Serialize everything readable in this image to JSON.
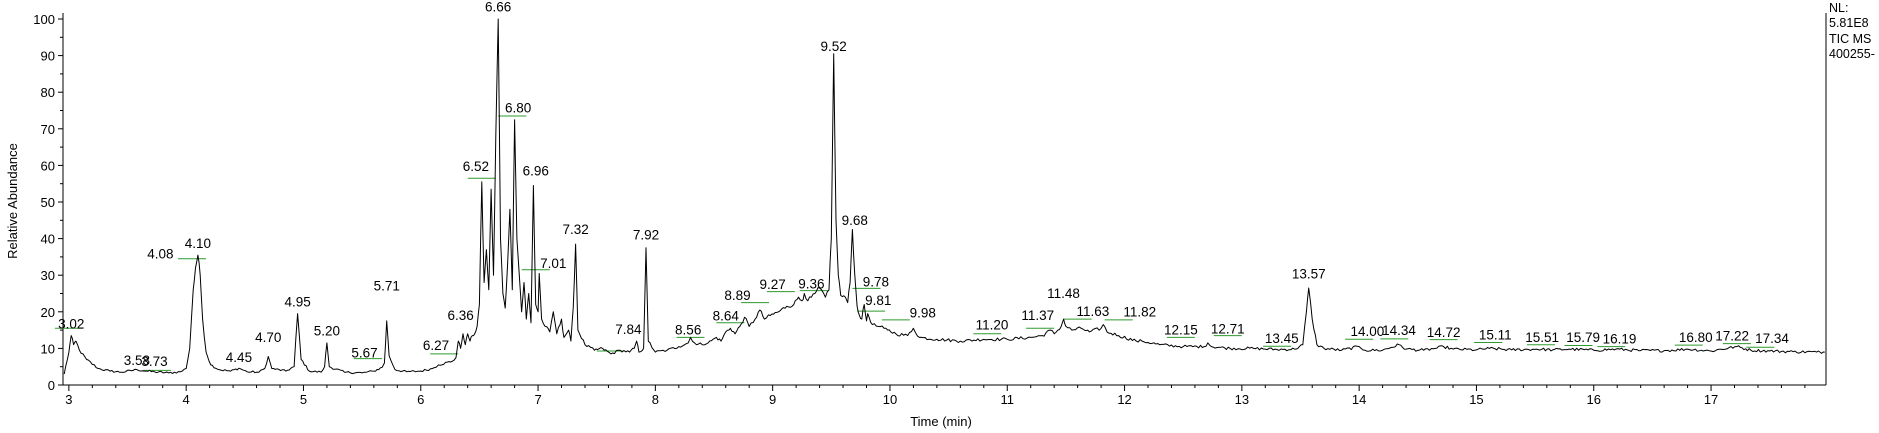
{
  "chart_data": {
    "type": "line",
    "xlabel": "Time (min)",
    "ylabel": "Relative Abundance",
    "xlim": [
      2.95,
      17.98
    ],
    "ylim": [
      0,
      100
    ],
    "x_ticks": [
      "3",
      "4",
      "5",
      "6",
      "7",
      "8",
      "9",
      "10",
      "11",
      "12",
      "13",
      "14",
      "15",
      "16",
      "17"
    ],
    "y_ticks": [
      "0",
      "10",
      "20",
      "30",
      "40",
      "50",
      "60",
      "70",
      "80",
      "90",
      "100"
    ],
    "series_name": "TIC MS",
    "trace": [
      [
        2.96,
        3
      ],
      [
        3.0,
        9
      ],
      [
        3.02,
        13.5
      ],
      [
        3.04,
        11
      ],
      [
        3.06,
        12
      ],
      [
        3.09,
        9.5
      ],
      [
        3.15,
        7
      ],
      [
        3.25,
        4.5
      ],
      [
        3.35,
        3.8
      ],
      [
        3.45,
        3.5
      ],
      [
        3.58,
        4.2
      ],
      [
        3.66,
        3.8
      ],
      [
        3.73,
        3.6
      ],
      [
        3.85,
        3.3
      ],
      [
        3.95,
        3.6
      ],
      [
        4.0,
        4.5
      ],
      [
        4.03,
        10
      ],
      [
        4.06,
        26
      ],
      [
        4.08,
        32
      ],
      [
        4.1,
        35.5
      ],
      [
        4.12,
        30
      ],
      [
        4.14,
        18
      ],
      [
        4.17,
        9
      ],
      [
        4.21,
        5.5
      ],
      [
        4.28,
        4.2
      ],
      [
        4.38,
        3.8
      ],
      [
        4.45,
        4.6
      ],
      [
        4.52,
        3.6
      ],
      [
        4.62,
        3.5
      ],
      [
        4.67,
        4.5
      ],
      [
        4.7,
        7.8
      ],
      [
        4.73,
        4.5
      ],
      [
        4.85,
        3.8
      ],
      [
        4.92,
        5
      ],
      [
        4.95,
        19.5
      ],
      [
        4.98,
        7
      ],
      [
        5.05,
        3.8
      ],
      [
        5.15,
        3.5
      ],
      [
        5.18,
        5
      ],
      [
        5.2,
        11.5
      ],
      [
        5.22,
        5
      ],
      [
        5.35,
        3.5
      ],
      [
        5.5,
        3.3
      ],
      [
        5.6,
        3.8
      ],
      [
        5.67,
        4.8
      ],
      [
        5.69,
        6
      ],
      [
        5.71,
        17.5
      ],
      [
        5.73,
        8
      ],
      [
        5.78,
        4.2
      ],
      [
        5.88,
        3.6
      ],
      [
        6.0,
        3.8
      ],
      [
        6.1,
        4.5
      ],
      [
        6.15,
        5.5
      ],
      [
        6.27,
        6.5
      ],
      [
        6.3,
        7.5
      ],
      [
        6.32,
        12
      ],
      [
        6.34,
        10
      ],
      [
        6.36,
        14
      ],
      [
        6.38,
        11
      ],
      [
        6.4,
        14
      ],
      [
        6.42,
        12
      ],
      [
        6.44,
        13.5
      ],
      [
        6.46,
        14
      ],
      [
        6.48,
        16
      ],
      [
        6.5,
        22
      ],
      [
        6.52,
        55.5
      ],
      [
        6.54,
        28
      ],
      [
        6.56,
        37
      ],
      [
        6.58,
        26
      ],
      [
        6.6,
        53.5
      ],
      [
        6.62,
        30
      ],
      [
        6.64,
        68
      ],
      [
        6.66,
        100
      ],
      [
        6.68,
        40
      ],
      [
        6.7,
        25
      ],
      [
        6.72,
        21
      ],
      [
        6.74,
        33
      ],
      [
        6.76,
        48
      ],
      [
        6.78,
        26
      ],
      [
        6.8,
        72.5
      ],
      [
        6.82,
        40
      ],
      [
        6.84,
        30
      ],
      [
        6.86,
        20
      ],
      [
        6.88,
        28
      ],
      [
        6.9,
        18
      ],
      [
        6.92,
        25
      ],
      [
        6.94,
        17
      ],
      [
        6.96,
        54.5
      ],
      [
        6.98,
        22
      ],
      [
        7.0,
        20
      ],
      [
        7.01,
        30.5
      ],
      [
        7.03,
        18
      ],
      [
        7.06,
        16
      ],
      [
        7.1,
        14.5
      ],
      [
        7.13,
        20
      ],
      [
        7.16,
        14
      ],
      [
        7.2,
        18
      ],
      [
        7.22,
        13
      ],
      [
        7.26,
        15
      ],
      [
        7.28,
        12
      ],
      [
        7.3,
        21
      ],
      [
        7.32,
        38.5
      ],
      [
        7.34,
        15
      ],
      [
        7.4,
        11
      ],
      [
        7.48,
        9.5
      ],
      [
        7.55,
        10
      ],
      [
        7.62,
        8.5
      ],
      [
        7.7,
        9.5
      ],
      [
        7.78,
        9
      ],
      [
        7.82,
        10
      ],
      [
        7.84,
        12
      ],
      [
        7.86,
        9
      ],
      [
        7.9,
        10
      ],
      [
        7.92,
        37.5
      ],
      [
        7.94,
        12
      ],
      [
        8.0,
        9
      ],
      [
        8.1,
        9.5
      ],
      [
        8.2,
        10.5
      ],
      [
        8.28,
        11.5
      ],
      [
        8.3,
        13
      ],
      [
        8.35,
        11
      ],
      [
        8.45,
        11.5
      ],
      [
        8.52,
        13
      ],
      [
        8.56,
        12
      ],
      [
        8.6,
        14.5
      ],
      [
        8.64,
        15.5
      ],
      [
        8.68,
        14
      ],
      [
        8.72,
        16
      ],
      [
        8.76,
        18.5
      ],
      [
        8.8,
        16
      ],
      [
        8.85,
        18
      ],
      [
        8.89,
        20.5
      ],
      [
        8.93,
        18
      ],
      [
        8.98,
        19
      ],
      [
        9.05,
        20
      ],
      [
        9.12,
        21.5
      ],
      [
        9.18,
        22
      ],
      [
        9.22,
        24
      ],
      [
        9.25,
        23
      ],
      [
        9.27,
        25
      ],
      [
        9.3,
        23
      ],
      [
        9.33,
        24
      ],
      [
        9.36,
        25
      ],
      [
        9.4,
        26.5
      ],
      [
        9.45,
        24
      ],
      [
        9.48,
        26
      ],
      [
        9.5,
        40
      ],
      [
        9.52,
        90.5
      ],
      [
        9.54,
        45
      ],
      [
        9.56,
        30
      ],
      [
        9.58,
        24.5
      ],
      [
        9.62,
        24
      ],
      [
        9.64,
        22.5
      ],
      [
        9.66,
        28
      ],
      [
        9.68,
        42.5
      ],
      [
        9.7,
        30
      ],
      [
        9.72,
        21.5
      ],
      [
        9.74,
        19
      ],
      [
        9.76,
        18
      ],
      [
        9.78,
        22
      ],
      [
        9.8,
        17.5
      ],
      [
        9.81,
        19.5
      ],
      [
        9.85,
        16.5
      ],
      [
        9.9,
        16
      ],
      [
        9.95,
        15.5
      ],
      [
        9.98,
        15
      ],
      [
        10.05,
        14
      ],
      [
        10.15,
        13.5
      ],
      [
        10.2,
        15.5
      ],
      [
        10.25,
        13
      ],
      [
        10.4,
        12.5
      ],
      [
        10.6,
        12
      ],
      [
        10.8,
        12.5
      ],
      [
        11.0,
        12.5
      ],
      [
        11.2,
        13
      ],
      [
        11.3,
        13.5
      ],
      [
        11.37,
        15
      ],
      [
        11.4,
        14
      ],
      [
        11.46,
        16
      ],
      [
        11.48,
        18
      ],
      [
        11.5,
        16
      ],
      [
        11.55,
        15
      ],
      [
        11.63,
        15.5
      ],
      [
        11.7,
        14.5
      ],
      [
        11.8,
        15.5
      ],
      [
        11.82,
        16.5
      ],
      [
        11.85,
        14.5
      ],
      [
        11.95,
        13.5
      ],
      [
        12.1,
        12
      ],
      [
        12.15,
        12
      ],
      [
        12.3,
        11
      ],
      [
        12.5,
        10.5
      ],
      [
        12.68,
        10.5
      ],
      [
        12.71,
        11.5
      ],
      [
        12.74,
        10.5
      ],
      [
        12.9,
        10
      ],
      [
        13.1,
        10
      ],
      [
        13.3,
        9.7
      ],
      [
        13.45,
        9.8
      ],
      [
        13.52,
        11
      ],
      [
        13.55,
        20
      ],
      [
        13.57,
        26.5
      ],
      [
        13.6,
        18
      ],
      [
        13.64,
        11
      ],
      [
        13.7,
        10
      ],
      [
        13.85,
        9.5
      ],
      [
        14.0,
        10.5
      ],
      [
        14.05,
        9.5
      ],
      [
        14.2,
        9.5
      ],
      [
        14.34,
        11
      ],
      [
        14.4,
        9.8
      ],
      [
        14.55,
        9.5
      ],
      [
        14.65,
        10
      ],
      [
        14.72,
        10.5
      ],
      [
        14.8,
        9.8
      ],
      [
        15.0,
        9.6
      ],
      [
        15.11,
        10
      ],
      [
        15.3,
        9.6
      ],
      [
        15.51,
        9.8
      ],
      [
        15.65,
        9.6
      ],
      [
        15.79,
        9.8
      ],
      [
        16.0,
        9.5
      ],
      [
        16.19,
        9.8
      ],
      [
        16.4,
        9.4
      ],
      [
        16.6,
        9.4
      ],
      [
        16.8,
        9.8
      ],
      [
        17.0,
        9.3
      ],
      [
        17.22,
        10.5
      ],
      [
        17.34,
        9.5
      ],
      [
        17.5,
        9.3
      ],
      [
        17.7,
        9.1
      ],
      [
        17.9,
        9.0
      ],
      [
        17.97,
        9.0
      ]
    ],
    "peaks": [
      {
        "label": "3.02",
        "x": 3.02,
        "y": 15.5
      },
      {
        "label": "3.58",
        "x": 3.58,
        "y": 5.5
      },
      {
        "label": "3.73",
        "x": 3.73,
        "y": 5.2
      },
      {
        "label": "4.08",
        "x": 3.78,
        "y": 34.5
      },
      {
        "label": "4.10",
        "x": 4.1,
        "y": 37.5
      },
      {
        "label": "4.45",
        "x": 4.45,
        "y": 6.3
      },
      {
        "label": "4.70",
        "x": 4.7,
        "y": 11.8
      },
      {
        "label": "4.95",
        "x": 4.95,
        "y": 21.5
      },
      {
        "label": "5.20",
        "x": 5.2,
        "y": 13.5
      },
      {
        "label": "5.67",
        "x": 5.52,
        "y": 7.5
      },
      {
        "label": "5.71",
        "x": 5.71,
        "y": 25.8
      },
      {
        "label": "6.27",
        "x": 6.13,
        "y": 9.5
      },
      {
        "label": "6.36",
        "x": 6.34,
        "y": 17.8
      },
      {
        "label": "6.52",
        "x": 6.47,
        "y": 58.5
      },
      {
        "label": "6.66",
        "x": 6.66,
        "y": 102
      },
      {
        "label": "6.80",
        "x": 6.83,
        "y": 74.5
      },
      {
        "label": "6.96",
        "x": 6.98,
        "y": 57.3
      },
      {
        "label": "7.01",
        "x": 7.13,
        "y": 32
      },
      {
        "label": "7.32",
        "x": 7.32,
        "y": 41.2
      },
      {
        "label": "7.84",
        "x": 7.77,
        "y": 14
      },
      {
        "label": "7.92",
        "x": 7.92,
        "y": 39.8
      },
      {
        "label": "8.56",
        "x": 8.28,
        "y": 13.8
      },
      {
        "label": "8.64",
        "x": 8.6,
        "y": 17.6
      },
      {
        "label": "8.89",
        "x": 8.7,
        "y": 23.2
      },
      {
        "label": "9.27",
        "x": 9.0,
        "y": 26.2
      },
      {
        "label": "9.36",
        "x": 9.33,
        "y": 26.4
      },
      {
        "label": "9.52",
        "x": 9.52,
        "y": 91.3
      },
      {
        "label": "9.68",
        "x": 9.7,
        "y": 43.7
      },
      {
        "label": "9.78",
        "x": 9.88,
        "y": 26.9
      },
      {
        "label": "9.81",
        "x": 9.9,
        "y": 21.8
      },
      {
        "label": "9.98",
        "x": 10.28,
        "y": 18.5
      },
      {
        "label": "11.20",
        "x": 10.87,
        "y": 15.1
      },
      {
        "label": "11.37",
        "x": 11.26,
        "y": 17.8
      },
      {
        "label": "11.48",
        "x": 11.48,
        "y": 23.8
      },
      {
        "label": "11.63",
        "x": 11.73,
        "y": 18.9
      },
      {
        "label": "11.82",
        "x": 12.13,
        "y": 18.7
      },
      {
        "label": "12.15",
        "x": 12.48,
        "y": 13.8
      },
      {
        "label": "12.71",
        "x": 12.88,
        "y": 14.1
      },
      {
        "label": "13.45",
        "x": 13.34,
        "y": 11.5
      },
      {
        "label": "13.57",
        "x": 13.57,
        "y": 29.1
      },
      {
        "label": "14.00",
        "x": 14.07,
        "y": 13.4
      },
      {
        "label": "14.34",
        "x": 14.34,
        "y": 13.6
      },
      {
        "label": "14.72",
        "x": 14.72,
        "y": 13.1
      },
      {
        "label": "15.11",
        "x": 15.16,
        "y": 12.4
      },
      {
        "label": "15.51",
        "x": 15.56,
        "y": 11.7
      },
      {
        "label": "15.79",
        "x": 15.91,
        "y": 11.7
      },
      {
        "label": "16.19",
        "x": 16.22,
        "y": 11.4
      },
      {
        "label": "16.80",
        "x": 16.87,
        "y": 11.7
      },
      {
        "label": "17.22",
        "x": 17.18,
        "y": 12.1
      },
      {
        "label": "17.34",
        "x": 17.52,
        "y": 11.5
      }
    ],
    "green_ticks": [
      [
        3.0,
        15.5
      ],
      [
        3.75,
        4.0
      ],
      [
        4.05,
        34.5
      ],
      [
        5.55,
        7.2
      ],
      [
        6.2,
        8.5
      ],
      [
        6.52,
        56.5
      ],
      [
        6.78,
        73.5
      ],
      [
        6.98,
        31.5
      ],
      [
        7.62,
        9.3
      ],
      [
        8.3,
        13.0
      ],
      [
        8.64,
        17.0
      ],
      [
        8.85,
        22.5
      ],
      [
        9.07,
        25.5
      ],
      [
        9.35,
        25.8
      ],
      [
        9.8,
        26.4
      ],
      [
        9.84,
        20.2
      ],
      [
        10.05,
        17.8
      ],
      [
        10.83,
        14.0
      ],
      [
        11.28,
        15.5
      ],
      [
        11.6,
        18.0
      ],
      [
        11.95,
        17.8
      ],
      [
        12.48,
        13.0
      ],
      [
        12.88,
        13.5
      ],
      [
        13.3,
        10.6
      ],
      [
        14.0,
        12.5
      ],
      [
        14.3,
        12.6
      ],
      [
        14.72,
        12.4
      ],
      [
        15.1,
        11.6
      ],
      [
        15.55,
        11.0
      ],
      [
        15.87,
        10.8
      ],
      [
        16.15,
        10.5
      ],
      [
        16.81,
        10.9
      ],
      [
        17.22,
        11.3
      ],
      [
        17.42,
        10.3
      ]
    ],
    "header_lines": [
      "NL:",
      "5.81E8",
      "TIC  MS",
      "400255-"
    ]
  }
}
